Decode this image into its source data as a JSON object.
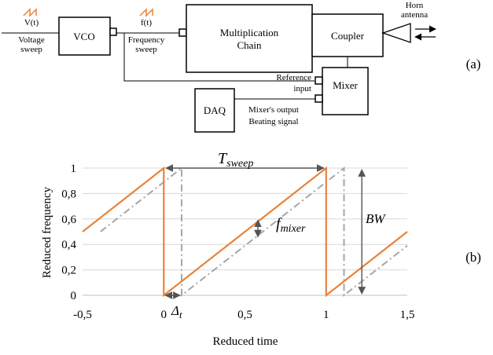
{
  "block_diagram": {
    "panel_label": "(a)",
    "input_top": "V(t)",
    "input_line1": "Voltage",
    "input_line2": "sweep",
    "vco": "VCO",
    "freq_top": "f(t)",
    "freq_line1": "Frequency",
    "freq_line2": "sweep",
    "mult_line1": "Multiplication",
    "mult_line2": "Chain",
    "coupler": "Coupler",
    "antenna_line1": "Horn",
    "antenna_line2": "antenna",
    "ref_line1": "Reference",
    "ref_line2": "input",
    "mixer": "Mixer",
    "daq": "DAQ",
    "out_line1": "Mixer's output",
    "out_line2": "Beating signal",
    "colors": {
      "ramp": "#e8823a",
      "line": "#000000"
    }
  },
  "chart_panel": {
    "panel_label": "(b)",
    "ann_tsweep_main": "T",
    "ann_tsweep_sub": "sweep",
    "ann_fmixer_main": "f",
    "ann_fmixer_sub": "mixer",
    "ann_bw": "BW",
    "ann_delta_main": "Δ",
    "ann_delta_sub": "t"
  },
  "chart_data": {
    "type": "line",
    "xlabel": "Reduced time",
    "ylabel": "Reduced frequency",
    "xlim": [
      -0.5,
      1.5
    ],
    "ylim": [
      0,
      1
    ],
    "x_ticks": [
      "-0,5",
      "0",
      "0,5",
      "1",
      "1,5"
    ],
    "x_tick_values": [
      -0.5,
      0,
      0.5,
      1,
      1.5
    ],
    "y_ticks": [
      "0",
      "0,2",
      "0,4",
      "0,6",
      "0,8",
      "1"
    ],
    "y_tick_values": [
      0,
      0.2,
      0.4,
      0.6,
      0.8,
      1
    ],
    "grid": "horizontal",
    "series": [
      {
        "style": "solid",
        "color": "#e8823a",
        "points": [
          [
            -0.5,
            0.5
          ],
          [
            0,
            1
          ],
          [
            0,
            0
          ],
          [
            1,
            1
          ],
          [
            1,
            0
          ],
          [
            1.5,
            0.5
          ]
        ]
      },
      {
        "style": "dash-dot",
        "color": "#a6a6a6",
        "points": [
          [
            -0.39,
            0.5
          ],
          [
            0.11,
            1
          ],
          [
            0.11,
            0
          ],
          [
            1.11,
            1
          ],
          [
            1.11,
            0
          ],
          [
            1.5,
            0.39
          ]
        ]
      }
    ],
    "tsweep_span": [
      0,
      1
    ],
    "delay": 0.11
  }
}
